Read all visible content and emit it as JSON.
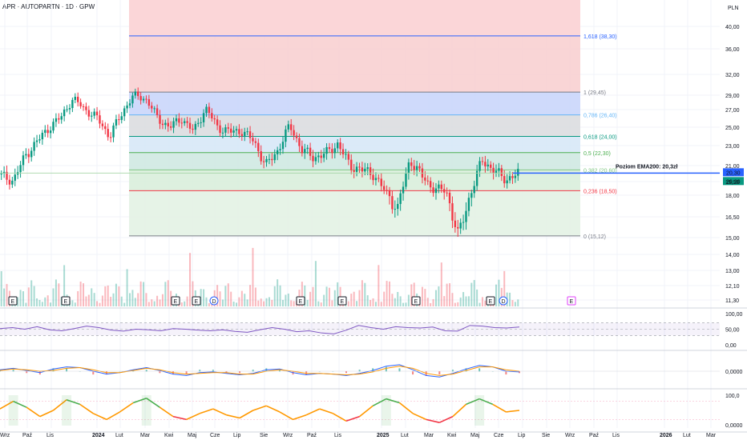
{
  "header": {
    "title": "APR · AUTOPARTN · 1D · GPW"
  },
  "axis": {
    "currency": "PLN",
    "price_ticks": [
      "40,00",
      "36,00",
      "32,00",
      "29,00",
      "27,00",
      "25,00",
      "23,00",
      "21,00",
      "19,50",
      "18,00",
      "16,50",
      "15,00",
      "14,00",
      "13,00",
      "12,10",
      "11,30"
    ],
    "month_ticks": [
      "Wrz",
      "Paź",
      "Lis",
      "2024",
      "Lut",
      "Mar",
      "Kwi",
      "Maj",
      "Cze",
      "Lip",
      "Sie",
      "Wrz",
      "Paź",
      "Lis",
      "2025",
      "Lut",
      "Mar",
      "Kwi",
      "Maj",
      "Cze",
      "Lip",
      "Sie",
      "Wrz",
      "Paź",
      "Lis",
      "2026",
      "Lut",
      "Mar"
    ],
    "rsi_ticks": [
      "100,00",
      "50,00",
      "0,00"
    ],
    "macd_ticks": [
      "0,0000"
    ],
    "osc_ticks": [
      "100,0",
      "0,0000"
    ]
  },
  "price_badges": {
    "ema200": "20,30",
    "last": "20,20"
  },
  "ema_label": "Poziom EMA200: 20,3zł",
  "fib_levels": [
    {
      "label": "1,618 (38,30)",
      "price": 38.3,
      "color": "#2962ff"
    },
    {
      "label": "1 (29,45)",
      "price": 29.45,
      "color": "#787b86"
    },
    {
      "label": "0,786 (26,40)",
      "price": 26.4,
      "color": "#64b5f6"
    },
    {
      "label": "0,618 (24,00)",
      "price": 24.0,
      "color": "#089981"
    },
    {
      "label": "0,5 (22,30)",
      "price": 22.3,
      "color": "#4caf50"
    },
    {
      "label": "0,382 (20,60)",
      "price": 20.6,
      "color": "#81c784"
    },
    {
      "label": "0,236 (18,50)",
      "price": 18.5,
      "color": "#f23645"
    },
    {
      "label": "0 (15,12)",
      "price": 15.12,
      "color": "#787b86"
    }
  ],
  "event_markers": [
    {
      "label": "E",
      "kind": "E"
    },
    {
      "label": "E",
      "kind": "E"
    },
    {
      "label": "E",
      "kind": "E"
    },
    {
      "label": "E",
      "kind": "E"
    },
    {
      "label": "D",
      "kind": "D"
    },
    {
      "label": "E",
      "kind": "E"
    },
    {
      "label": "E",
      "kind": "E"
    },
    {
      "label": "E",
      "kind": "E"
    },
    {
      "label": "E",
      "kind": "E"
    },
    {
      "label": "D",
      "kind": "D"
    },
    {
      "label": "E",
      "kind": "E-future"
    }
  ],
  "colors": {
    "up": "#089981",
    "down": "#f23645",
    "ema": "#2962ff",
    "rsi": "#7e57c2",
    "macd": "#2962ff",
    "signal": "#ff9800"
  },
  "chart_data": {
    "type": "candlestick",
    "ylim": [
      15.0,
      40.0
    ],
    "close_series": {
      "start": "Aug 2023",
      "end": "Jul 2025",
      "values": [
        20.0,
        19.6,
        22.0,
        23.5,
        25.0,
        26.2,
        28.5,
        27.0,
        26.0,
        24.0,
        26.5,
        29.0,
        28.5,
        26.0,
        25.0,
        26.0,
        24.5,
        27.2,
        25.0,
        24.5,
        24.6,
        23.5,
        21.0,
        22.5,
        25.2,
        22.6,
        21.8,
        22.2,
        23.2,
        21.0,
        20.6,
        20.2,
        18.3,
        17.0,
        21.6,
        20.0,
        18.7,
        18.5,
        15.1,
        18.0,
        21.6,
        20.5,
        19.7,
        20.2
      ]
    },
    "rsi_ylim": [
      0,
      100
    ],
    "rsi_values": [
      52,
      55,
      50,
      58,
      48,
      45,
      52,
      60,
      55,
      47,
      44,
      50,
      48,
      45,
      52,
      50,
      47,
      45,
      48,
      43,
      40,
      48,
      55,
      50,
      42,
      45,
      38,
      35,
      47,
      62,
      55,
      50,
      58,
      55,
      54,
      57,
      45,
      44,
      62,
      60,
      55,
      54,
      57
    ],
    "macd": [
      0.2,
      0.4,
      0.1,
      -0.2,
      0.3,
      0.6,
      0.5,
      0.0,
      -0.4,
      -0.2,
      0.2,
      0.5,
      0.1,
      -0.4,
      -0.6,
      -0.2,
      -0.1,
      -0.3,
      -0.5,
      -0.3,
      0.2,
      0.3,
      -0.2,
      -0.5,
      -0.3,
      -0.4,
      -0.6,
      -0.3,
      0.1,
      0.7,
      0.9,
      0.2,
      -0.6,
      -0.8,
      -0.3,
      0.3,
      0.8,
      0.6,
      0.0,
      -0.1
    ],
    "signal": [
      0.1,
      0.3,
      0.2,
      0.0,
      0.1,
      0.4,
      0.5,
      0.2,
      -0.2,
      -0.2,
      0.1,
      0.4,
      0.2,
      -0.2,
      -0.4,
      -0.3,
      -0.2,
      -0.2,
      -0.4,
      -0.4,
      0.0,
      0.2,
      0.0,
      -0.3,
      -0.3,
      -0.4,
      -0.5,
      -0.4,
      -0.1,
      0.4,
      0.7,
      0.4,
      -0.3,
      -0.6,
      -0.4,
      0.1,
      0.6,
      0.6,
      0.2,
      0.0
    ],
    "osc_ylim": [
      0,
      100
    ],
    "osc_values": [
      55,
      80,
      60,
      30,
      50,
      85,
      70,
      40,
      20,
      45,
      75,
      90,
      60,
      30,
      20,
      40,
      55,
      35,
      25,
      50,
      65,
      45,
      20,
      35,
      55,
      40,
      15,
      30,
      65,
      88,
      75,
      40,
      20,
      10,
      30,
      70,
      88,
      70,
      45,
      50
    ]
  }
}
